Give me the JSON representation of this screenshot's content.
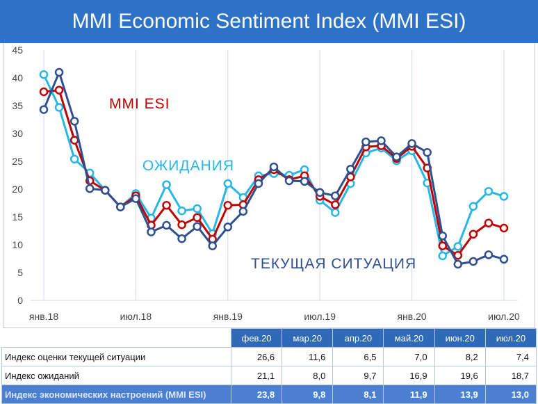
{
  "header": {
    "title": "MMI Economic Sentiment Index (MMI ESI)"
  },
  "colors": {
    "header_bg": "#2e72c8",
    "esi": "#c00000",
    "expectations": "#27b7e6",
    "current": "#2f4f8f",
    "table_header": "#2e6ab8",
    "table_highlight": "#4b7fd1"
  },
  "chart_data": {
    "type": "line",
    "y_ticks": [
      "0",
      "5",
      "10",
      "15",
      "20",
      "25",
      "30",
      "35",
      "40",
      "45"
    ],
    "ylim": [
      0,
      45
    ],
    "x_tick_labels": [
      "янв.18",
      "июл.18",
      "янв.19",
      "июл.19",
      "янв.20",
      "июл.20"
    ],
    "x_tick_index": [
      0,
      6,
      12,
      18,
      24,
      30
    ],
    "x_count": 31,
    "grid": "vertical",
    "series": [
      {
        "name": "ОЖИДАНИЯ",
        "color": "#27b7e6",
        "values": [
          40.6,
          34.7,
          25.4,
          22.9,
          19.8,
          16.8,
          19.2,
          14.8,
          20.8,
          16.1,
          16.5,
          12.0,
          21.0,
          18.5,
          22.4,
          22.8,
          22.5,
          23.5,
          18.0,
          15.8,
          21.0,
          26.5,
          27.4,
          25.1,
          26.9,
          21.1,
          8.0,
          9.7,
          16.9,
          19.6,
          18.7
        ]
      },
      {
        "name": "MMI ESI",
        "color": "#c00000",
        "values": [
          37.5,
          37.8,
          28.8,
          21.5,
          19.8,
          16.8,
          18.8,
          13.5,
          17.1,
          13.6,
          14.9,
          11.0,
          17.1,
          17.2,
          21.7,
          23.5,
          21.7,
          22.4,
          18.7,
          17.2,
          22.2,
          27.6,
          27.8,
          25.5,
          27.7,
          23.8,
          9.8,
          8.1,
          11.9,
          13.9,
          13.0
        ]
      },
      {
        "name": "ТЕКУЩАЯ СИТУАЦИЯ",
        "color": "#2f4f8f",
        "values": [
          34.3,
          41.0,
          32.2,
          20.1,
          19.8,
          16.8,
          18.3,
          12.3,
          13.5,
          11.1,
          13.3,
          9.8,
          13.2,
          16.0,
          21.0,
          24.0,
          21.5,
          21.4,
          19.4,
          18.8,
          23.6,
          28.5,
          28.7,
          25.8,
          28.2,
          26.6,
          11.6,
          6.5,
          7.0,
          8.2,
          7.4
        ]
      }
    ],
    "annotations": [
      "MMI ESI",
      "ОЖИДАНИЯ",
      "ТЕКУЩАЯ СИТУАЦИЯ"
    ]
  },
  "table": {
    "columns": [
      "фев.20",
      "мар.20",
      "апр.20",
      "май.20",
      "июн.20",
      "июл.20"
    ],
    "rows": [
      {
        "label": "Индекс оценки текущей ситуации",
        "values": [
          "26,6",
          "11,6",
          "6,5",
          "7,0",
          "8,2",
          "7,4"
        ]
      },
      {
        "label": "Индекс ожиданий",
        "values": [
          "21,1",
          "8,0",
          "9,7",
          "16,9",
          "19,6",
          "18,7"
        ]
      },
      {
        "label": "Индекс экономических настроений (MMI ESI)",
        "values": [
          "23,8",
          "9,8",
          "8,1",
          "11,9",
          "13,9",
          "13,0"
        ]
      }
    ]
  }
}
